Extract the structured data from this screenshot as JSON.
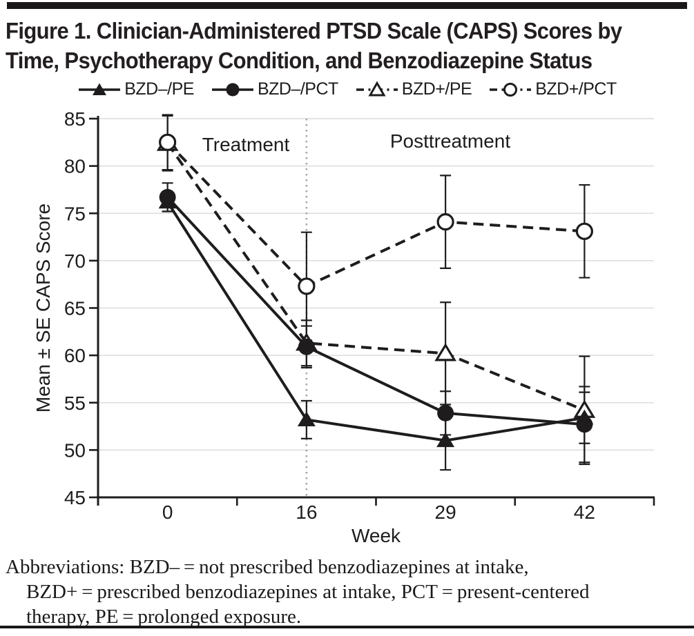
{
  "colors": {
    "ink": "#1e1c1c",
    "title_ink": "#231f20",
    "grid": "#dcdcdc",
    "divider": "#a6a6a6",
    "background": "#ffffff"
  },
  "figure": {
    "title_lines": [
      "Figure 1. Clinician-Administered PTSD Scale (CAPS) Scores by",
      "Time, Psychotherapy Condition, and Benzodiazepine Status"
    ],
    "footnote_lines": [
      "Abbreviations: BZD– = not prescribed benzodiazepines at intake,",
      "BZD+ = prescribed benzodiazepines at intake, PCT = present-centered",
      "therapy, PE = prolonged exposure."
    ]
  },
  "chart_data": {
    "type": "line",
    "title": "Clinician-Administered PTSD Scale (CAPS) Scores by Time, Psychotherapy Condition, and Benzodiazepine Status",
    "x": [
      0,
      16,
      29,
      42
    ],
    "xlabel": "Week",
    "ylabel": "Mean ± SE CAPS Score",
    "ylim": [
      45,
      85
    ],
    "yticks": [
      45,
      50,
      55,
      60,
      65,
      70,
      75,
      80,
      85
    ],
    "grid": true,
    "legend_position": "top",
    "phase_divider_at_week": 16,
    "annotations": [
      {
        "text": "Treatment"
      },
      {
        "text": "Posttreatment"
      }
    ],
    "series": [
      {
        "name": "BZD–/PE",
        "marker": "triangle",
        "fill": "filled",
        "line": "solid",
        "values": [
          76.2,
          53.2,
          51.0,
          53.4
        ],
        "se": [
          1.0,
          2.0,
          3.1,
          2.7
        ]
      },
      {
        "name": "BZD–/PCT",
        "marker": "circle",
        "fill": "filled",
        "line": "solid",
        "values": [
          76.7,
          60.9,
          53.9,
          52.7
        ],
        "se": [
          1.5,
          2.2,
          2.3,
          4.0
        ]
      },
      {
        "name": "BZD+/PE",
        "marker": "triangle",
        "fill": "open",
        "line": "dashed",
        "values": [
          82.4,
          61.3,
          60.2,
          54.2
        ],
        "se": [
          2.9,
          2.4,
          5.4,
          5.7
        ]
      },
      {
        "name": "BZD+/PCT",
        "marker": "circle",
        "fill": "open",
        "line": "dashed",
        "values": [
          82.5,
          67.3,
          74.1,
          73.1
        ],
        "se": [
          2.9,
          5.7,
          4.9,
          4.9
        ]
      }
    ]
  }
}
